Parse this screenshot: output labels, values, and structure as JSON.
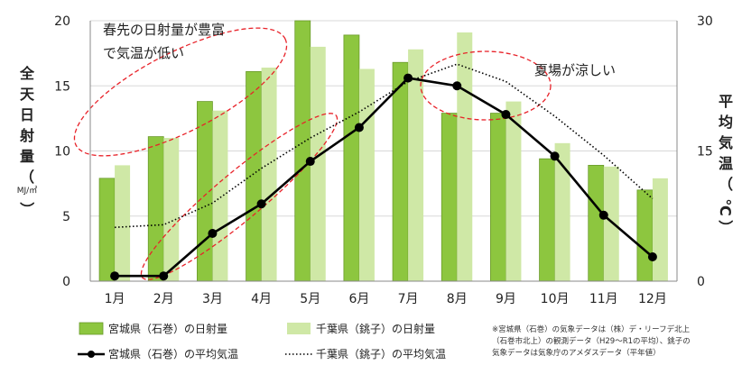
{
  "chart_data": {
    "type": "bar+line",
    "categories": [
      "1月",
      "2月",
      "3月",
      "4月",
      "5月",
      "6月",
      "7月",
      "8月",
      "9月",
      "10月",
      "11月",
      "12月"
    ],
    "series": [
      {
        "name": "宮城県（石巻）の日射量",
        "kind": "bar",
        "axis": "left",
        "color": "#8dc63f",
        "values": [
          7.9,
          11.1,
          13.8,
          16.1,
          20.0,
          18.9,
          16.8,
          12.9,
          12.9,
          9.4,
          8.9,
          7.0
        ]
      },
      {
        "name": "千葉県（銚子）の日射量",
        "kind": "bar",
        "axis": "left",
        "color": "#cfe8a6",
        "values": [
          8.9,
          11.0,
          13.1,
          16.4,
          18.0,
          16.3,
          17.8,
          19.1,
          13.8,
          10.6,
          8.8,
          7.9
        ]
      },
      {
        "name": "宮城県（石巻）の平均気温",
        "kind": "line",
        "axis": "right",
        "color": "#000000",
        "values": [
          0.6,
          0.6,
          5.5,
          8.9,
          13.8,
          17.7,
          23.4,
          22.5,
          19.2,
          14.4,
          7.6,
          2.8
        ]
      },
      {
        "name": "千葉県（銚子）の平均気温",
        "kind": "dotted-line",
        "axis": "right",
        "color": "#000000",
        "values": [
          6.2,
          6.5,
          9.0,
          13.0,
          16.5,
          19.5,
          23.0,
          25.0,
          23.0,
          19.0,
          14.5,
          9.5
        ]
      }
    ],
    "y_left": {
      "label_chars": [
        "全",
        "天",
        "日",
        "射",
        "量",
        "（"
      ],
      "unit": "MJ/㎡",
      "close": "）",
      "ylim": [
        0,
        20
      ],
      "ticks": [
        0,
        5,
        10,
        15,
        20
      ]
    },
    "y_right": {
      "label_chars": [
        "平",
        "均",
        "気",
        "温",
        "（"
      ],
      "unit": "℃",
      "close": "）",
      "ylim": [
        0,
        30
      ],
      "ticks": [
        0,
        15,
        30
      ]
    },
    "annotations": [
      {
        "lines": [
          "春先の日射量が豊富",
          "で気温が低い"
        ]
      },
      {
        "lines": [
          "夏場が涼しい"
        ]
      }
    ],
    "note_lines": [
      "※宮城県（石巻）の気象データは（株）デ・リーフデ北上",
      "（石巻市北上）の観測データ（H29～R1の平均）、銚子の",
      "気象データは気象庁のアメダスデータ（平年値）"
    ],
    "colors": {
      "bar_primary": "#8dc63f",
      "bar_primary_edge": "#6a9a2a",
      "bar_secondary": "#cfe8a6",
      "annotation_ellipse": "#e8232a",
      "axis": "#888888"
    }
  }
}
